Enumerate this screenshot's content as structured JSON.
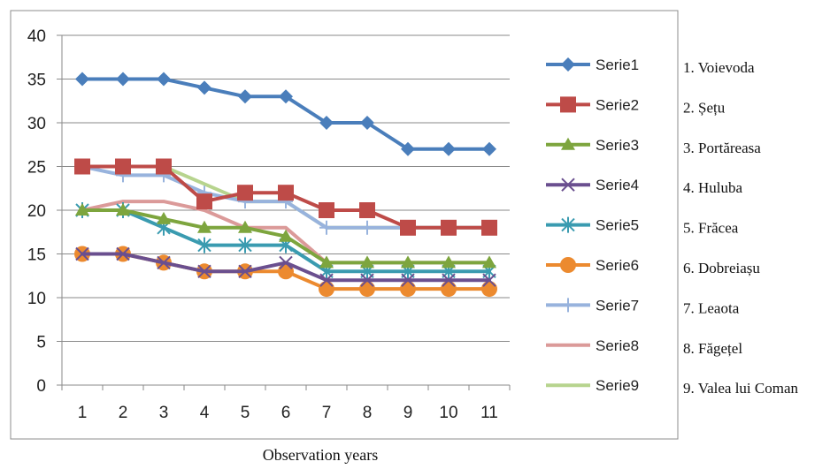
{
  "chart_data": {
    "type": "line",
    "xlabel": "Observation years",
    "ylabel": "",
    "x": [
      1,
      2,
      3,
      4,
      5,
      6,
      7,
      8,
      9,
      10,
      11
    ],
    "ylim": [
      0,
      40
    ],
    "yticks": [
      0,
      5,
      10,
      15,
      20,
      25,
      30,
      35,
      40
    ],
    "grid": true,
    "legend_position": "right",
    "series": [
      {
        "name": "Serie1",
        "color": "#4a7ebb",
        "marker": "diamond",
        "values": [
          35,
          35,
          35,
          34,
          33,
          33,
          30,
          30,
          27,
          27,
          27
        ]
      },
      {
        "name": "Serie2",
        "color": "#be4b48",
        "marker": "square",
        "values": [
          25,
          25,
          25,
          21,
          22,
          22,
          20,
          20,
          18,
          18,
          18
        ]
      },
      {
        "name": "Serie3",
        "color": "#7da53e",
        "marker": "triangle",
        "values": [
          20,
          20,
          19,
          18,
          18,
          17,
          14,
          14,
          14,
          14,
          14
        ]
      },
      {
        "name": "Serie4",
        "color": "#6a4f8f",
        "marker": "x",
        "values": [
          15,
          15,
          14,
          13,
          13,
          14,
          12,
          12,
          12,
          12,
          12
        ]
      },
      {
        "name": "Serie5",
        "color": "#3a9bb0",
        "marker": "star",
        "values": [
          20,
          20,
          18,
          16,
          16,
          16,
          13,
          13,
          13,
          13,
          13
        ]
      },
      {
        "name": "Serie6",
        "color": "#ec8a2f",
        "marker": "circle",
        "values": [
          15,
          15,
          14,
          13,
          13,
          13,
          11,
          11,
          11,
          11,
          11
        ]
      },
      {
        "name": "Serie7",
        "color": "#98b3dd",
        "marker": "plus",
        "values": [
          25,
          24,
          24,
          22,
          21,
          21,
          18,
          18,
          18,
          18,
          18
        ]
      },
      {
        "name": "Serie8",
        "color": "#db9a99",
        "marker": "none",
        "values": [
          20,
          21,
          21,
          20,
          18,
          18,
          14,
          14,
          14,
          14,
          14
        ]
      },
      {
        "name": "Serie9",
        "color": "#b7d48e",
        "marker": "none",
        "values": [
          25,
          25,
          25,
          23,
          21,
          21,
          18,
          18,
          18,
          18,
          18
        ]
      }
    ],
    "station_labels": [
      "1. Voievoda",
      "2. Șețu",
      "3. Portăreasa",
      "4. Huluba",
      "5. Frăcea",
      "6. Dobreiașu",
      "7. Leaota",
      "8. Făgețel",
      "9. Valea lui Coman"
    ]
  }
}
